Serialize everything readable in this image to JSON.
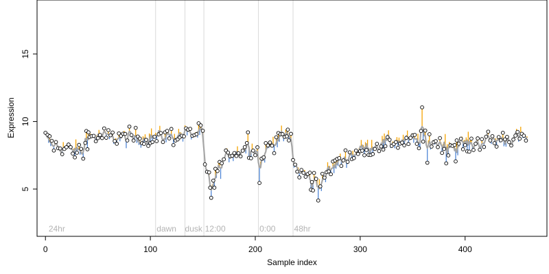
{
  "chart_data": {
    "type": "scatter",
    "title": "",
    "xlabel": "Sample index",
    "ylabel": "Expression",
    "xlim": [
      -8,
      478
    ],
    "ylim": [
      1.5,
      19
    ],
    "x_ticks": [
      0,
      100,
      200,
      300,
      400
    ],
    "y_ticks": [
      5,
      10,
      15
    ],
    "grid": false,
    "legend": "none",
    "annotations": [
      {
        "label": "24hr",
        "x": 3
      },
      {
        "label": "dawn",
        "x": 106
      },
      {
        "label": "dusk",
        "x": 133
      },
      {
        "label": "12:00",
        "x": 152
      },
      {
        "label": "0:00",
        "x": 204
      },
      {
        "label": "48hr",
        "x": 237
      }
    ],
    "vertical_lines": [
      105,
      133,
      151,
      203,
      236
    ],
    "colors": {
      "points_fill": "#ffffff",
      "points_stroke": "#000000",
      "line_main": "#a6a6a6",
      "above_stick": "#f5a300",
      "below_stick": "#4f86d6",
      "vline": "#d9d9d9",
      "annotation": "#b3b3b3"
    },
    "anchors": [
      [
        0,
        8.8
      ],
      [
        6,
        8.3
      ],
      [
        15,
        8.1
      ],
      [
        25,
        7.9
      ],
      [
        33,
        7.8
      ],
      [
        37,
        8.2
      ],
      [
        40,
        8.9
      ],
      [
        55,
        8.9
      ],
      [
        70,
        8.8
      ],
      [
        90,
        8.8
      ],
      [
        110,
        8.9
      ],
      [
        130,
        9.0
      ],
      [
        145,
        9.1
      ],
      [
        150,
        9.2
      ],
      [
        151,
        7.2
      ],
      [
        153,
        6.2
      ],
      [
        158,
        5.6
      ],
      [
        162,
        6.0
      ],
      [
        168,
        6.8
      ],
      [
        175,
        7.6
      ],
      [
        183,
        7.8
      ],
      [
        195,
        8.1
      ],
      [
        202,
        7.9
      ],
      [
        204,
        6.6
      ],
      [
        210,
        7.8
      ],
      [
        218,
        8.6
      ],
      [
        228,
        8.9
      ],
      [
        234,
        8.8
      ],
      [
        236,
        7.2
      ],
      [
        240,
        6.4
      ],
      [
        255,
        5.7
      ],
      [
        262,
        5.6
      ],
      [
        270,
        6.3
      ],
      [
        280,
        7.0
      ],
      [
        290,
        7.5
      ],
      [
        300,
        7.9
      ],
      [
        315,
        8.3
      ],
      [
        330,
        8.5
      ],
      [
        345,
        8.6
      ],
      [
        360,
        8.6
      ],
      [
        375,
        8.4
      ],
      [
        390,
        8.4
      ],
      [
        405,
        8.3
      ],
      [
        420,
        8.6
      ],
      [
        440,
        8.7
      ],
      [
        458,
        8.9
      ]
    ],
    "n_points": 460,
    "noise_sd": 0.45,
    "overrides": [
      [
        36,
        7.25
      ],
      [
        39,
        9.3
      ],
      [
        41,
        9.2
      ],
      [
        158,
        4.35
      ],
      [
        161,
        5.1
      ],
      [
        157,
        5.1
      ],
      [
        204,
        5.45
      ],
      [
        253,
        4.95
      ],
      [
        255,
        4.9
      ],
      [
        260,
        4.15
      ],
      [
        359,
        11.05
      ],
      [
        364,
        6.95
      ],
      [
        382,
        6.9
      ],
      [
        391,
        7.05
      ],
      [
        222,
        9.15
      ],
      [
        193,
        9.2
      ],
      [
        231,
        9.4
      ],
      [
        134,
        9.5
      ],
      [
        120,
        9.45
      ]
    ]
  }
}
